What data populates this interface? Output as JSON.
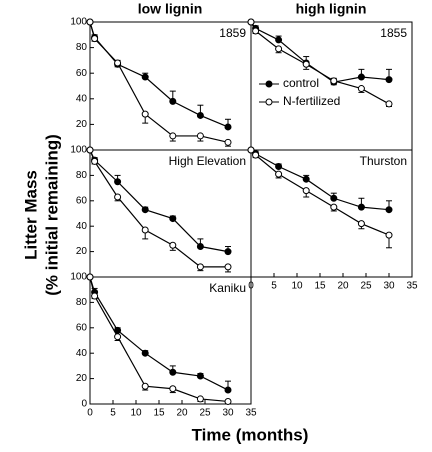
{
  "column_titles": [
    "low lignin",
    "high lignin"
  ],
  "ylabel": [
    "Litter Mass",
    "(% initial remaining)"
  ],
  "xlabel": "Time (months)",
  "chart_data": [
    {
      "type": "line",
      "title": "1859",
      "x": [
        0,
        1,
        6,
        12,
        18,
        24,
        30
      ],
      "xlim": [
        0,
        35
      ],
      "ylim": [
        0,
        100
      ],
      "yticks": [
        20,
        40,
        60,
        80,
        100
      ],
      "series": [
        {
          "color": "#000000",
          "fill": "#000000",
          "values": [
            100,
            88,
            67,
            57,
            38,
            27,
            18
          ],
          "errors": [
            0,
            2,
            3,
            3,
            8,
            8,
            6
          ]
        },
        {
          "color": "#000000",
          "fill": "#ffffff",
          "values": [
            100,
            87,
            68,
            28,
            11,
            11,
            6
          ],
          "errors": [
            0,
            2,
            3,
            7,
            4,
            4,
            3
          ]
        }
      ]
    },
    {
      "type": "line",
      "title": "1855",
      "x": [
        0,
        1,
        6,
        12,
        18,
        24,
        30
      ],
      "xlim": [
        0,
        35
      ],
      "ylim": [
        0,
        100
      ],
      "series": [
        {
          "name": "control",
          "color": "#000000",
          "fill": "#000000",
          "values": [
            100,
            95,
            86,
            68,
            53,
            57,
            55
          ],
          "errors": [
            0,
            2,
            3,
            5,
            3,
            6,
            8
          ]
        },
        {
          "name": "N-fertilized",
          "color": "#000000",
          "fill": "#ffffff",
          "values": [
            100,
            93,
            79,
            67,
            54,
            48,
            36
          ],
          "errors": [
            0,
            2,
            3,
            4,
            3,
            3,
            2
          ]
        }
      ]
    },
    {
      "type": "line",
      "title": "High Elevation",
      "x": [
        0,
        1,
        6,
        12,
        18,
        24,
        30
      ],
      "xlim": [
        0,
        35
      ],
      "ylim": [
        0,
        100
      ],
      "yticks": [
        20,
        40,
        60,
        80,
        100
      ],
      "series": [
        {
          "color": "#000000",
          "fill": "#000000",
          "values": [
            100,
            92,
            75,
            53,
            46,
            24,
            20
          ],
          "errors": [
            0,
            2,
            5,
            2,
            2,
            6,
            4
          ]
        },
        {
          "color": "#000000",
          "fill": "#ffffff",
          "values": [
            100,
            91,
            63,
            37,
            25,
            8,
            8
          ],
          "errors": [
            0,
            2,
            3,
            7,
            4,
            3,
            4
          ]
        }
      ]
    },
    {
      "type": "line",
      "title": "Thurston",
      "x": [
        0,
        1,
        6,
        12,
        18,
        24,
        30
      ],
      "xlim": [
        0,
        35
      ],
      "ylim": [
        0,
        100
      ],
      "xticks": [
        0,
        5,
        10,
        15,
        20,
        25,
        30,
        35
      ],
      "series": [
        {
          "color": "#000000",
          "fill": "#000000",
          "values": [
            100,
            97,
            87,
            77,
            62,
            55,
            53
          ],
          "errors": [
            0,
            2,
            2,
            3,
            4,
            7,
            7
          ]
        },
        {
          "color": "#000000",
          "fill": "#ffffff",
          "values": [
            100,
            96,
            81,
            68,
            55,
            42,
            33
          ],
          "errors": [
            0,
            2,
            3,
            5,
            3,
            4,
            10
          ]
        }
      ]
    },
    {
      "type": "line",
      "title": "Kaniku",
      "x": [
        0,
        1,
        6,
        12,
        18,
        24,
        30
      ],
      "xlim": [
        0,
        35
      ],
      "ylim": [
        0,
        100
      ],
      "yticks": [
        0,
        20,
        40,
        60,
        80,
        100
      ],
      "xticks": [
        0,
        5,
        10,
        15,
        20,
        25,
        30,
        35
      ],
      "series": [
        {
          "color": "#000000",
          "fill": "#000000",
          "values": [
            100,
            88,
            58,
            40,
            25,
            22,
            11
          ],
          "errors": [
            0,
            3,
            2,
            2,
            5,
            2,
            7
          ]
        },
        {
          "color": "#000000",
          "fill": "#ffffff",
          "values": [
            100,
            85,
            53,
            14,
            12,
            4,
            2
          ],
          "errors": [
            0,
            2,
            3,
            3,
            3,
            2,
            2
          ]
        }
      ]
    }
  ]
}
